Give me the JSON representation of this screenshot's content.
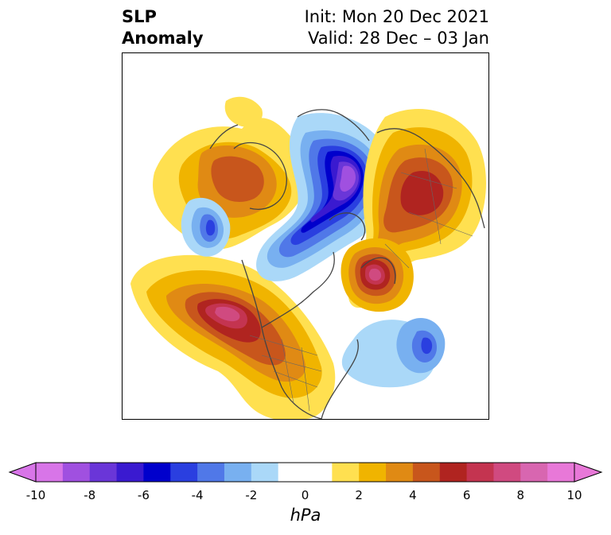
{
  "title": {
    "left_line1": "SLP",
    "left_line2": "Anomaly",
    "right_line1": "Init: Mon 20 Dec 2021",
    "right_line2": "Valid: 28 Dec – 03 Jan"
  },
  "colorbar": {
    "unit": "hPa",
    "ticks": [
      "-10",
      "-8",
      "-6",
      "-4",
      "-2",
      "0",
      "2",
      "4",
      "6",
      "8",
      "10"
    ],
    "levels": [
      -10,
      -9,
      -8,
      -7,
      -6,
      -5,
      -4,
      -3,
      -2,
      -1,
      1,
      2,
      3,
      4,
      5,
      6,
      7,
      8,
      9,
      10
    ],
    "colors": [
      "#d875e8",
      "#a050e0",
      "#6a36d8",
      "#3a1ad0",
      "#0000cc",
      "#2a3fe0",
      "#5078e8",
      "#78b0f0",
      "#aad8f8",
      "#ffffff",
      "#ffffff",
      "#ffe050",
      "#f0b400",
      "#e08a14",
      "#c8561c",
      "#b02420",
      "#c43450",
      "#d04a80",
      "#d866b0",
      "#e878d8"
    ],
    "under_color": "#d875e8",
    "over_color": "#e878d8"
  },
  "map": {
    "projection": "north-polar-stereographic",
    "features": [
      "coastlines",
      "country-borders",
      "state-borders"
    ]
  }
}
